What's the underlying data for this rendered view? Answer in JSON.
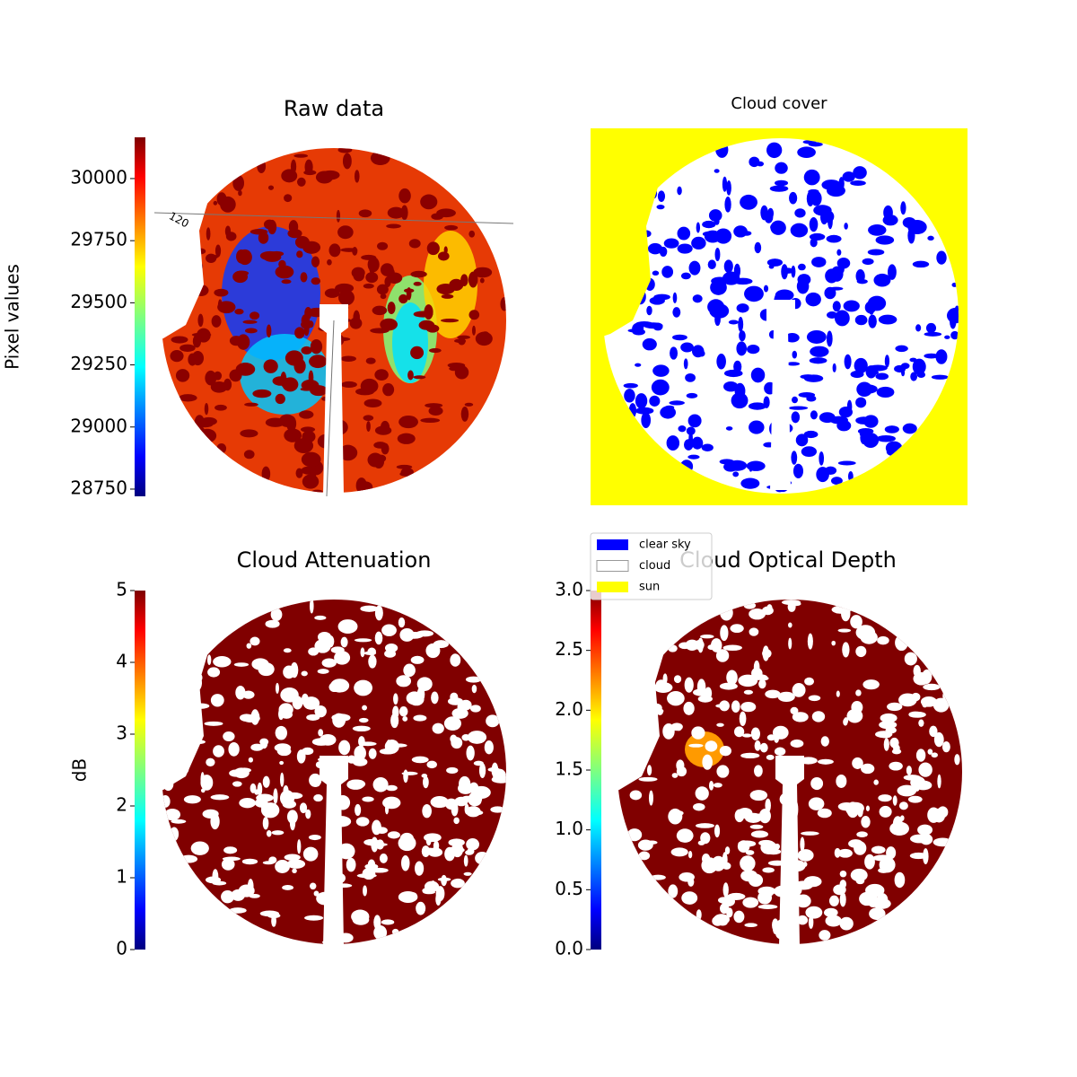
{
  "chart_data": [
    {
      "type": "image",
      "title": "Raw data",
      "annotation": "120",
      "colorbar_label": "Pixel values",
      "colormap": "jet",
      "ylim": [
        28721,
        30166
      ],
      "yticks": [
        28750,
        29000,
        29250,
        29500,
        29750,
        30000
      ]
    },
    {
      "type": "mask",
      "title": "Cloud cover",
      "background": "#ffff00",
      "series": [
        {
          "name": "clear sky",
          "color": "#0000ff"
        },
        {
          "name": "cloud",
          "color": "#ffffff"
        },
        {
          "name": "sun",
          "color": "#ffff00"
        }
      ]
    },
    {
      "type": "image",
      "title": "Cloud Attenuation",
      "colorbar_label": "dB",
      "colormap": "jet",
      "ylim": [
        0,
        5
      ],
      "yticks": [
        0,
        1,
        2,
        3,
        4,
        5
      ]
    },
    {
      "type": "image",
      "title": "Cloud Optical Depth",
      "colormap": "jet",
      "ylim": [
        0,
        3
      ],
      "yticks": [
        {
          "value": 0,
          "label": "0.0"
        },
        0.5,
        {
          "value": 1,
          "label": "1.0"
        },
        1.5,
        {
          "value": 2,
          "label": "2.0"
        },
        2.5,
        {
          "value": 3,
          "label": "3.0"
        }
      ]
    }
  ]
}
